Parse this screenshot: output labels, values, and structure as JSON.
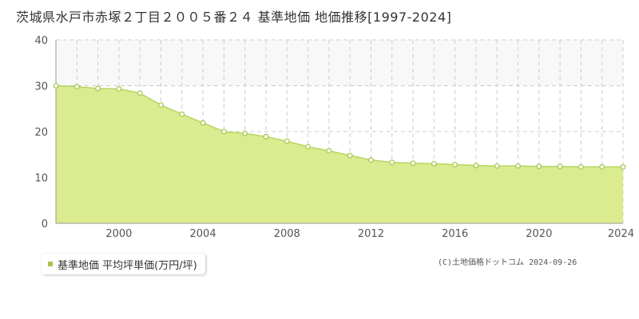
{
  "title": "茨城県水戸市赤塚２丁目２００５番２４ 基準地価 地価推移[1997-2024]",
  "legend": {
    "label": "基準地価 平均坪単価(万円/坪)"
  },
  "copyright": {
    "text": "(C)土地価格ドットコム",
    "date": "2024-09-26"
  },
  "colors": {
    "fill": "#dbeb90",
    "line": "#b8d55e",
    "point_fill": "#ffffff",
    "point_stroke": "#a3c64a",
    "legend": "#a3c64a",
    "upper_band": "#f8f8f8",
    "grid": "#cccccc"
  },
  "chart_data": {
    "type": "area",
    "x": [
      1997,
      1998,
      1999,
      2000,
      2001,
      2002,
      2003,
      2004,
      2005,
      2006,
      2007,
      2008,
      2009,
      2010,
      2011,
      2012,
      2013,
      2014,
      2015,
      2016,
      2017,
      2018,
      2019,
      2020,
      2021,
      2022,
      2023,
      2024
    ],
    "series": [
      {
        "name": "基準地価 平均坪単価(万円/坪)",
        "values": [
          30.0,
          29.8,
          29.4,
          29.3,
          28.4,
          25.8,
          23.8,
          21.9,
          20.0,
          19.6,
          18.9,
          17.9,
          16.7,
          15.8,
          14.8,
          13.8,
          13.3,
          13.1,
          13.0,
          12.8,
          12.6,
          12.5,
          12.5,
          12.4,
          12.4,
          12.3,
          12.3,
          12.3
        ]
      }
    ],
    "xlim": [
      1997,
      2024
    ],
    "ylim": [
      0,
      40
    ],
    "xticks": [
      2000,
      2004,
      2008,
      2012,
      2016,
      2020,
      2024
    ],
    "yticks": [
      0,
      10,
      20,
      30,
      40
    ],
    "grid": true
  }
}
